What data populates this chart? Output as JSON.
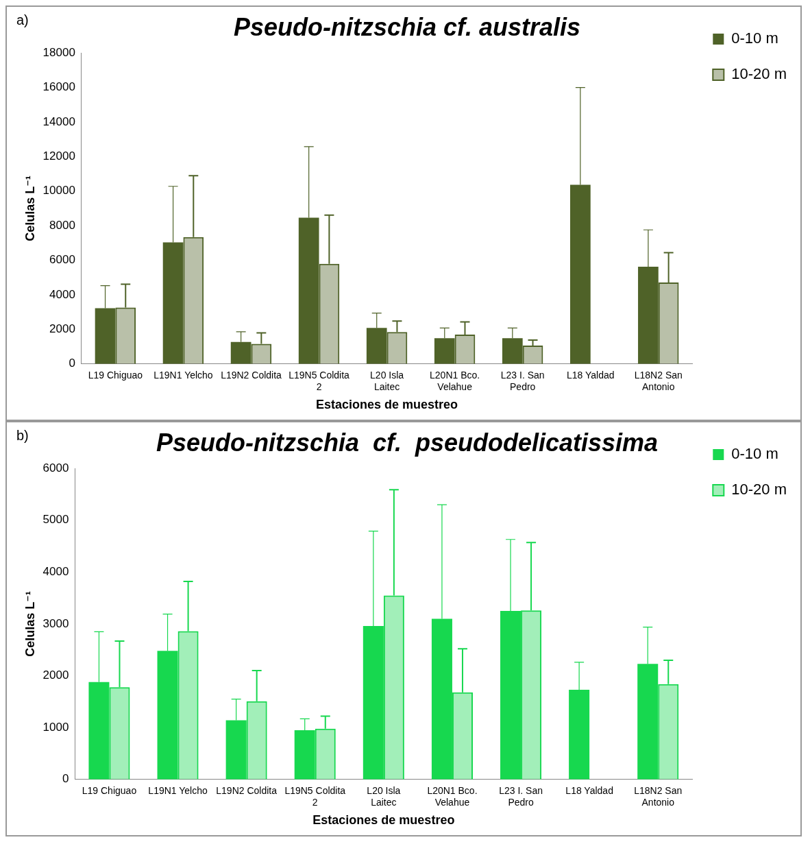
{
  "chart_data": [
    {
      "type": "bar",
      "title": "Pseudo-nitzschia cf. australis",
      "xlabel": "Estaciones de muestreo",
      "ylabel": "Celulas L⁻¹",
      "annotations": [
        "a)"
      ],
      "categories": [
        "L19 Chiguao",
        "L19N1 Yelcho",
        "L19N2 Coldita",
        "L19N5 Coldita 2",
        "L20 Isla Laitec",
        "L20N1 Bco. Velahue",
        "L23 I. San Pedro",
        "L18 Yaldad",
        "L18N2 San Antonio"
      ],
      "series": [
        {
          "name": "0-10 m",
          "color": "#4f6228",
          "values": [
            3230,
            7040,
            1270,
            8460,
            2090,
            1490,
            1490,
            10370,
            5630
          ],
          "errors": [
            [
              3230,
              4530
            ],
            [
              7040,
              10280
            ],
            [
              1270,
              1860
            ],
            [
              8460,
              12580
            ],
            [
              2090,
              2940
            ],
            [
              1490,
              2080
            ],
            [
              1490,
              2080
            ],
            [
              10370,
              16000
            ],
            [
              5630,
              7760
            ]
          ]
        },
        {
          "name": "10-20 m",
          "color": "#4f6228",
          "values": [
            3270,
            7340,
            1160,
            5800,
            1850,
            1700,
            1060,
            null,
            4710
          ],
          "errors": [
            [
              3270,
              4620
            ],
            [
              7340,
              10890
            ],
            [
              1160,
              1800
            ],
            [
              5800,
              8610
            ],
            [
              1850,
              2480
            ],
            [
              1700,
              2430
            ],
            [
              1060,
              1380
            ],
            null,
            [
              4710,
              6440
            ]
          ]
        }
      ],
      "ylim": [
        0,
        18000
      ],
      "yticks": [
        0,
        2000,
        4000,
        6000,
        8000,
        10000,
        12000,
        14000,
        16000,
        18000
      ],
      "grid": false,
      "legend": "top right"
    },
    {
      "type": "bar",
      "title": "Pseudo-nitzschia  cf.  pseudodelicatissima",
      "xlabel": "Estaciones de muestreo",
      "ylabel": "Celulas L⁻¹",
      "annotations": [
        "b)"
      ],
      "categories": [
        "L19 Chiguao",
        "L19N1 Yelcho",
        "L19N2 Coldita",
        "L19N5 Coldita 2",
        "L20 Isla Laitec",
        "L20N1 Bco. Velahue",
        "L23 I. San Pedro",
        "L18 Yaldad",
        "L18N2 San Antonio"
      ],
      "series": [
        {
          "name": "0-10 m",
          "color": "#17d84f",
          "values": [
            1880,
            2480,
            1140,
            950,
            2960,
            3100,
            3250,
            1730,
            2230
          ],
          "errors": [
            [
              1880,
              2850
            ],
            [
              2480,
              3190
            ],
            [
              1140,
              1550
            ],
            [
              950,
              1170
            ],
            [
              2960,
              4790
            ],
            [
              3100,
              5300
            ],
            [
              3250,
              4630
            ],
            [
              1730,
              2260
            ],
            [
              2230,
              2940
            ]
          ]
        },
        {
          "name": "10-20 m",
          "color": "#17d84f",
          "values": [
            1780,
            2860,
            1510,
            980,
            3550,
            1680,
            3260,
            null,
            1840
          ],
          "errors": [
            [
              1780,
              2670
            ],
            [
              2860,
              3820
            ],
            [
              1510,
              2100
            ],
            [
              980,
              1220
            ],
            [
              3550,
              5590
            ],
            [
              1680,
              2520
            ],
            [
              3260,
              4570
            ],
            null,
            [
              1840,
              2300
            ]
          ]
        }
      ],
      "ylim": [
        0,
        6000
      ],
      "yticks": [
        0,
        1000,
        2000,
        3000,
        4000,
        5000,
        6000
      ],
      "grid": false,
      "legend": "top right"
    }
  ]
}
